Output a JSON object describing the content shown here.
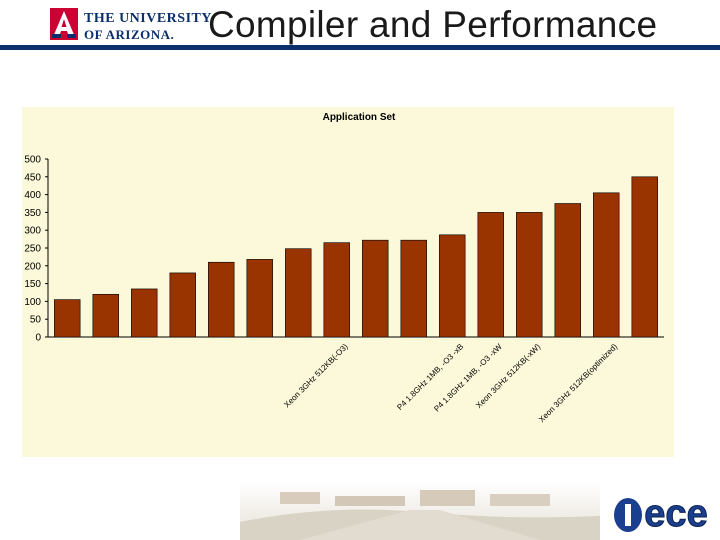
{
  "header": {
    "university_line1": "THE UNIVERSITY",
    "university_line2": "OF ARIZONA.",
    "logo_letter": "A",
    "slide_title": "Compiler and Performance",
    "rule_color": "#0b2f6b"
  },
  "footer": {
    "photo": "campus-aerial-photo",
    "logo_text": "ece",
    "logo_color": "#1b3f8f"
  },
  "chart_data": {
    "type": "bar",
    "title": "Application Set",
    "xlabel": "",
    "ylabel": "",
    "ylim": [
      0,
      500
    ],
    "yticks": [
      0,
      50,
      100,
      150,
      200,
      250,
      300,
      350,
      400,
      450,
      500
    ],
    "grid": false,
    "legend": "none",
    "bar_color": "#993300",
    "background": "#fbf9d9",
    "values": [
      105,
      120,
      135,
      180,
      210,
      218,
      248,
      265,
      272,
      272,
      287,
      350,
      350,
      375,
      405,
      450
    ],
    "tick_labels": [
      "",
      "",
      "",
      "",
      "",
      "",
      "",
      "Xeon 3GHz 512KB(-O3)",
      "",
      "",
      "P4 1.8GHz 1MB, -O3 -xB",
      "P4 1.8GHz 1MB, -O3 -xW",
      "Xeon 3GHz 512KB(-xW)",
      "",
      "Xeon 3GHz 512KB(optimized)",
      ""
    ]
  }
}
